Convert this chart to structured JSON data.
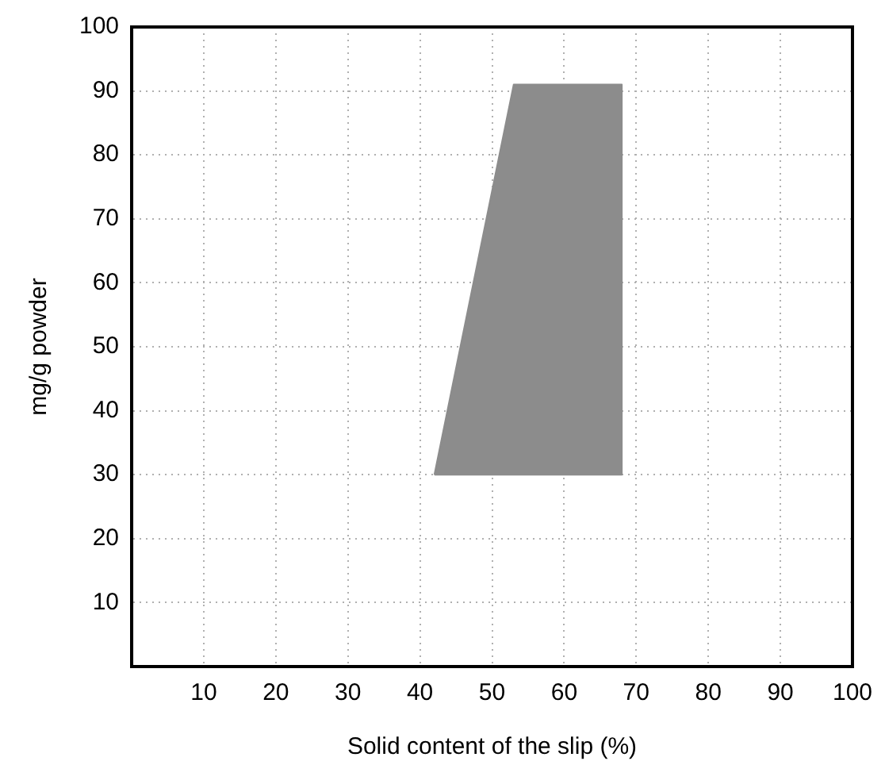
{
  "chart_data": {
    "type": "area",
    "xlabel": "Solid content of the slip (%)",
    "ylabel": "mg/g powder",
    "xlim": [
      0,
      100
    ],
    "xticks": [
      10,
      20,
      30,
      40,
      50,
      60,
      70,
      80,
      90,
      100
    ],
    "ylim": [
      0,
      100
    ],
    "yticks": [
      10,
      20,
      30,
      40,
      50,
      60,
      70,
      80,
      90,
      100
    ],
    "grid": true,
    "legend": false,
    "series": [
      {
        "x": [
          42,
          53,
          68,
          68,
          42
        ],
        "values": [
          30,
          91,
          91,
          30,
          30
        ],
        "color": "#8c8c8c"
      }
    ]
  }
}
